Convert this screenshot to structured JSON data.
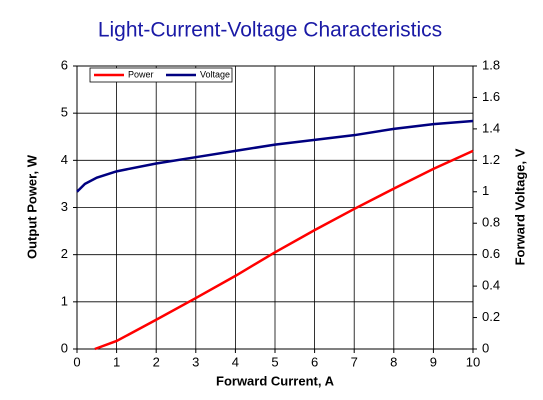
{
  "chart_data": {
    "type": "line",
    "title": "Light-Current-Voltage Characteristics",
    "x_label": "Forward Current, A",
    "y_label": "Output Power, W",
    "y2_label": "Forward Voltage, V",
    "xlim": [
      0,
      10
    ],
    "xticks": [
      0,
      1,
      2,
      3,
      4,
      5,
      6,
      7,
      8,
      9,
      10
    ],
    "ylim": [
      0,
      6
    ],
    "yticks": [
      0,
      1,
      2,
      3,
      4,
      5,
      6
    ],
    "y2lim": [
      0,
      1.8
    ],
    "y2ticks": [
      0,
      0.2,
      0.4,
      0.6,
      0.8,
      1,
      1.2,
      1.4,
      1.6,
      1.8
    ],
    "grid": true,
    "legend": "upper left",
    "series": [
      {
        "name": "Power",
        "color": "#ff0000",
        "x": [
          0.45,
          1,
          2,
          3,
          4,
          5,
          6,
          7,
          8,
          9,
          10
        ],
        "values": [
          0,
          0.17,
          0.62,
          1.08,
          1.55,
          2.05,
          2.52,
          2.97,
          3.4,
          3.82,
          4.2
        ]
      },
      {
        "name": "Voltage",
        "color": "#000080",
        "axis": "y2",
        "x": [
          0,
          0.2,
          0.5,
          1,
          2,
          3,
          4,
          5,
          6,
          7,
          8,
          9,
          10
        ],
        "values": [
          1.0,
          1.05,
          1.09,
          1.13,
          1.18,
          1.22,
          1.26,
          1.3,
          1.33,
          1.36,
          1.4,
          1.43,
          1.45
        ]
      }
    ]
  }
}
